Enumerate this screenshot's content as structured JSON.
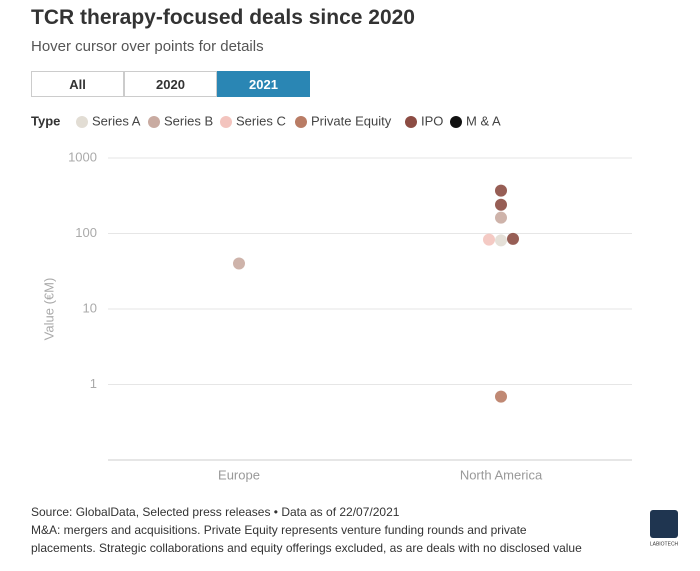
{
  "chart_data": {
    "type": "scatter",
    "title": "TCR therapy-focused deals since 2020",
    "subtitle": "Hover cursor over points for details",
    "filters": [
      "All",
      "2020",
      "2021"
    ],
    "active_filter": "2021",
    "legend_title": "Type",
    "y_label": "Value (€M)",
    "categories": [
      "Europe",
      "North America"
    ],
    "log_y": true,
    "ylim": [
      0.1,
      1000
    ],
    "yticks": [
      1,
      10,
      100,
      1000
    ],
    "grid": true,
    "series": [
      {
        "name": "Series A",
        "color": "#e2ddd4",
        "x": [
          "North America"
        ],
        "values": [
          81
        ]
      },
      {
        "name": "Series B",
        "color": "#c9aba1",
        "x": [
          "Europe",
          "North America"
        ],
        "values": [
          40,
          162
        ]
      },
      {
        "name": "Series C",
        "color": "#f3c4be",
        "x": [
          "North America"
        ],
        "values": [
          83
        ]
      },
      {
        "name": "Private Equity",
        "color": "#b97c65",
        "x": [
          "North America"
        ],
        "values": [
          0.69
        ]
      },
      {
        "name": "IPO",
        "color": "#8c4c43",
        "x": [
          "North America",
          "North America",
          "North America"
        ],
        "values": [
          370,
          240,
          85
        ]
      },
      {
        "name": "M & A",
        "color": "#111111",
        "x": [],
        "values": []
      }
    ],
    "source": "Source: GlobalData, Selected press releases • Data as of 22/07/2021",
    "notes": [
      "M&A: mergers and acquisitions. Private Equity represents venture funding rounds and private",
      "placements. Strategic collaborations and equity offerings excluded, as are deals with no disclosed value"
    ],
    "logo": "LABIOTECH"
  }
}
